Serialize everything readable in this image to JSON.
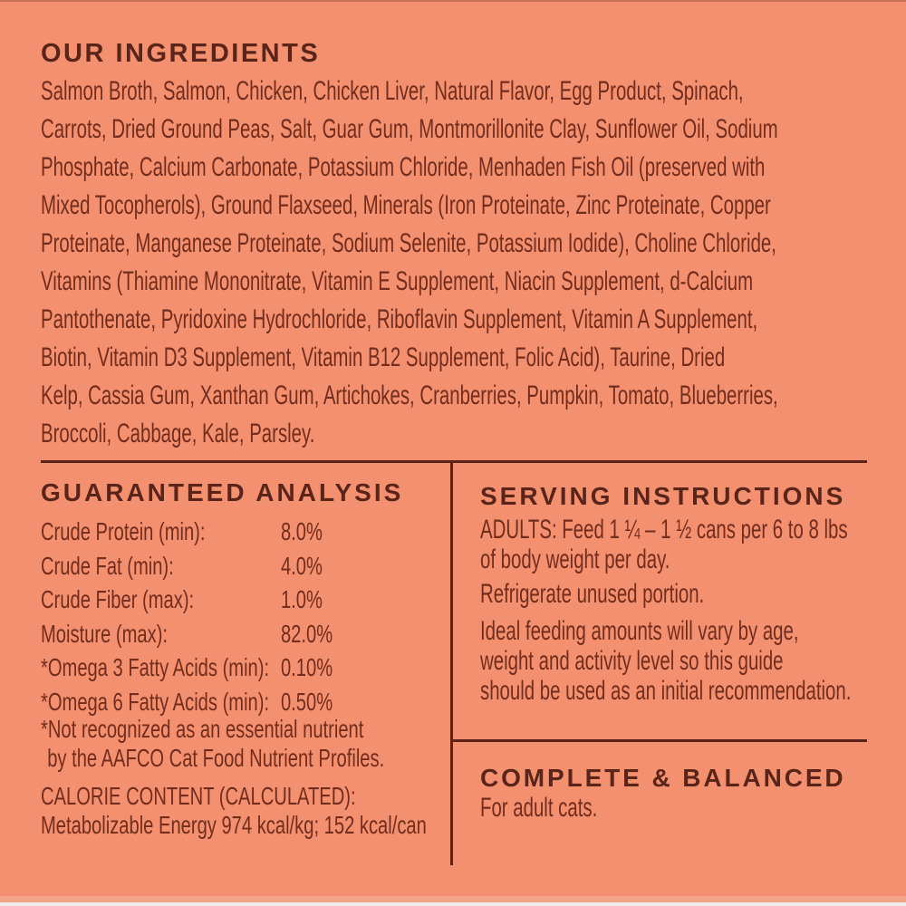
{
  "colors": {
    "background": "#F29070",
    "heading_text": "#5A2418",
    "body_text": "#742C1C",
    "divider": "#5A2418"
  },
  "ingredients": {
    "title": "OUR INGREDIENTS",
    "lines": [
      "Salmon Broth, Salmon, Chicken, Chicken Liver, Natural Flavor, Egg Product, Spinach,",
      "Carrots, Dried Ground Peas, Salt, Guar Gum, Montmorillonite Clay, Sunflower Oil, Sodium",
      "Phosphate, Calcium Carbonate, Potassium Chloride, Menhaden Fish Oil (preserved with",
      "Mixed Tocopherols), Ground Flaxseed, Minerals (Iron Proteinate, Zinc Proteinate, Copper",
      "Proteinate, Manganese Proteinate, Sodium Selenite, Potassium Iodide), Choline Chloride,",
      "Vitamins (Thiamine Mononitrate, Vitamin E Supplement, Niacin Supplement, d-Calcium",
      "Pantothenate, Pyridoxine Hydrochloride, Riboflavin Supplement, Vitamin A Supplement,",
      "Biotin, Vitamin D3 Supplement, Vitamin B12 Supplement, Folic Acid), Taurine, Dried",
      "Kelp, Cassia Gum, Xanthan Gum, Artichokes, Cranberries, Pumpkin, Tomato, Blueberries,",
      "Broccoli, Cabbage, Kale, Parsley."
    ]
  },
  "guaranteed_analysis": {
    "title": "GUARANTEED ANALYSIS",
    "rows": [
      {
        "label": "Crude Protein (min):",
        "value": "8.0%"
      },
      {
        "label": "Crude Fat (min):",
        "value": "4.0%"
      },
      {
        "label": "Crude Fiber (max):",
        "value": "1.0%"
      },
      {
        "label": "Moisture (max):",
        "value": "82.0%"
      },
      {
        "label": "*Omega 3 Fatty Acids (min):",
        "value": "0.10%"
      },
      {
        "label": "*Omega 6 Fatty Acids (min):",
        "value": "0.50%"
      }
    ],
    "footnote_lines": [
      "*Not recognized as an essential nutrient",
      "by the AAFCO Cat Food Nutrient Profiles."
    ],
    "calorie_heading": "CALORIE CONTENT (CALCULATED):",
    "calorie_value": "Metabolizable Energy 974 kcal/kg; 152 kcal/can"
  },
  "serving_instructions": {
    "title": "SERVING INSTRUCTIONS",
    "paragraphs": [
      {
        "lines": [
          "ADULTS: Feed 1 ¼ – 1 ½ cans per 6 to 8 lbs",
          "of body weight per day."
        ]
      },
      {
        "lines": [
          "Refrigerate unused portion."
        ]
      },
      {
        "lines": [
          "Ideal feeding amounts will vary by age,",
          "weight and activity level so this guide",
          "should be used as an initial recommendation."
        ]
      }
    ]
  },
  "complete_balanced": {
    "title": "COMPLETE & BALANCED",
    "text": "For adult cats."
  }
}
